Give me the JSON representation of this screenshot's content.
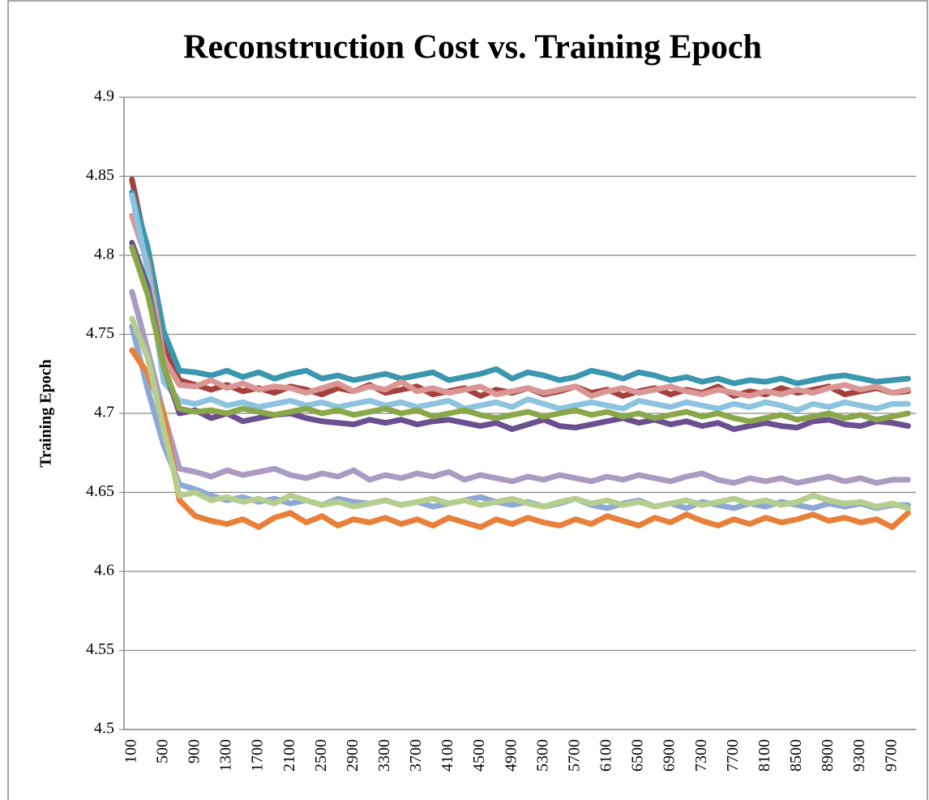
{
  "chart_data": {
    "type": "line",
    "title": "Reconstruction Cost vs. Training Epoch",
    "y_label": "Training Epoch",
    "categories": [
      "100",
      null,
      "500",
      null,
      "900",
      null,
      "1300",
      null,
      "1700",
      null,
      "2100",
      null,
      "2500",
      null,
      "2900",
      null,
      "3300",
      null,
      "3700",
      null,
      "4100",
      null,
      "4500",
      null,
      "4900",
      null,
      "5300",
      null,
      "5700",
      null,
      "6100",
      null,
      "6500",
      null,
      "6900",
      null,
      "7300",
      null,
      "7700",
      null,
      "8100",
      null,
      "8500",
      null,
      "8900",
      null,
      "9300",
      null,
      "9700",
      null
    ],
    "ylim": [
      4.5,
      4.9
    ],
    "yticks": [
      4.5,
      4.55,
      4.6,
      4.65,
      4.7,
      4.75,
      4.8,
      4.85,
      4.9
    ],
    "grid": true,
    "series": [
      {
        "color": "#a5403d",
        "values": [
          4.848,
          4.8,
          4.745,
          4.721,
          4.718,
          4.715,
          4.718,
          4.714,
          4.716,
          4.713,
          4.717,
          4.715,
          4.712,
          4.716,
          4.714,
          4.718,
          4.713,
          4.715,
          4.717,
          4.712,
          4.714,
          4.716,
          4.711,
          4.715,
          4.713,
          4.716,
          4.712,
          4.714,
          4.717,
          4.713,
          4.715,
          4.711,
          4.714,
          4.716,
          4.712,
          4.715,
          4.713,
          4.717,
          4.711,
          4.714,
          4.712,
          4.716,
          4.713,
          4.715,
          4.717,
          4.712,
          4.714,
          4.716,
          4.713,
          4.714
        ]
      },
      {
        "color": "#3a97ae",
        "values": [
          4.84,
          4.805,
          4.752,
          4.727,
          4.726,
          4.724,
          4.727,
          4.723,
          4.726,
          4.722,
          4.725,
          4.727,
          4.722,
          4.724,
          4.721,
          4.723,
          4.725,
          4.722,
          4.724,
          4.726,
          4.721,
          4.723,
          4.725,
          4.728,
          4.722,
          4.726,
          4.724,
          4.721,
          4.723,
          4.727,
          4.725,
          4.722,
          4.726,
          4.724,
          4.721,
          4.723,
          4.72,
          4.722,
          4.719,
          4.721,
          4.72,
          4.722,
          4.719,
          4.721,
          4.723,
          4.724,
          4.722,
          4.72,
          4.721,
          4.722
        ]
      },
      {
        "color": "#d99694",
        "values": [
          4.825,
          4.795,
          4.735,
          4.718,
          4.717,
          4.721,
          4.716,
          4.719,
          4.715,
          4.717,
          4.716,
          4.713,
          4.716,
          4.719,
          4.714,
          4.717,
          4.715,
          4.72,
          4.714,
          4.716,
          4.713,
          4.715,
          4.717,
          4.712,
          4.714,
          4.716,
          4.713,
          4.715,
          4.717,
          4.711,
          4.714,
          4.716,
          4.713,
          4.715,
          4.717,
          4.714,
          4.712,
          4.715,
          4.713,
          4.711,
          4.714,
          4.712,
          4.715,
          4.713,
          4.716,
          4.718,
          4.715,
          4.717,
          4.713,
          4.715
        ]
      },
      {
        "color": "#8cc3de",
        "values": [
          4.838,
          4.79,
          4.72,
          4.708,
          4.706,
          4.709,
          4.705,
          4.707,
          4.704,
          4.706,
          4.708,
          4.705,
          4.707,
          4.704,
          4.706,
          4.708,
          4.705,
          4.707,
          4.704,
          4.706,
          4.708,
          4.703,
          4.705,
          4.707,
          4.704,
          4.709,
          4.706,
          4.703,
          4.705,
          4.707,
          4.705,
          4.703,
          4.708,
          4.706,
          4.704,
          4.707,
          4.705,
          4.703,
          4.706,
          4.704,
          4.707,
          4.705,
          4.702,
          4.706,
          4.704,
          4.707,
          4.705,
          4.703,
          4.706,
          4.706
        ]
      },
      {
        "color": "#6b4f8f",
        "values": [
          4.808,
          4.78,
          4.73,
          4.7,
          4.702,
          4.697,
          4.7,
          4.695,
          4.697,
          4.699,
          4.7,
          4.697,
          4.695,
          4.694,
          4.693,
          4.696,
          4.694,
          4.696,
          4.693,
          4.695,
          4.696,
          4.694,
          4.692,
          4.694,
          4.69,
          4.693,
          4.696,
          4.692,
          4.691,
          4.693,
          4.695,
          4.697,
          4.694,
          4.696,
          4.693,
          4.695,
          4.692,
          4.694,
          4.69,
          4.692,
          4.694,
          4.692,
          4.691,
          4.695,
          4.696,
          4.693,
          4.692,
          4.695,
          4.694,
          4.692
        ]
      },
      {
        "color": "#8aa84a",
        "values": [
          4.805,
          4.775,
          4.73,
          4.703,
          4.701,
          4.702,
          4.7,
          4.703,
          4.701,
          4.699,
          4.701,
          4.703,
          4.7,
          4.702,
          4.699,
          4.701,
          4.703,
          4.7,
          4.702,
          4.698,
          4.7,
          4.702,
          4.699,
          4.697,
          4.699,
          4.701,
          4.698,
          4.7,
          4.702,
          4.699,
          4.701,
          4.698,
          4.7,
          4.697,
          4.699,
          4.701,
          4.698,
          4.7,
          4.697,
          4.695,
          4.697,
          4.699,
          4.696,
          4.698,
          4.7,
          4.697,
          4.699,
          4.696,
          4.698,
          4.7
        ]
      },
      {
        "color": "#a99bc1",
        "values": [
          4.777,
          4.74,
          4.7,
          4.665,
          4.663,
          4.66,
          4.664,
          4.661,
          4.663,
          4.665,
          4.661,
          4.659,
          4.662,
          4.66,
          4.664,
          4.658,
          4.661,
          4.659,
          4.662,
          4.66,
          4.663,
          4.658,
          4.661,
          4.659,
          4.657,
          4.66,
          4.658,
          4.661,
          4.659,
          4.657,
          4.66,
          4.658,
          4.661,
          4.659,
          4.657,
          4.66,
          4.662,
          4.658,
          4.656,
          4.659,
          4.657,
          4.659,
          4.656,
          4.658,
          4.66,
          4.657,
          4.659,
          4.656,
          4.658,
          4.658
        ]
      },
      {
        "color": "#8ea8d6",
        "values": [
          4.755,
          4.715,
          4.68,
          4.655,
          4.652,
          4.648,
          4.645,
          4.647,
          4.644,
          4.646,
          4.643,
          4.645,
          4.642,
          4.646,
          4.644,
          4.643,
          4.645,
          4.642,
          4.644,
          4.641,
          4.643,
          4.645,
          4.647,
          4.644,
          4.642,
          4.644,
          4.641,
          4.643,
          4.646,
          4.642,
          4.64,
          4.643,
          4.645,
          4.641,
          4.643,
          4.64,
          4.644,
          4.642,
          4.64,
          4.643,
          4.641,
          4.644,
          4.642,
          4.64,
          4.643,
          4.641,
          4.643,
          4.64,
          4.642,
          4.642
        ]
      },
      {
        "color": "#e8803a",
        "values": [
          4.74,
          4.725,
          4.7,
          4.645,
          4.635,
          4.632,
          4.63,
          4.633,
          4.628,
          4.634,
          4.637,
          4.631,
          4.635,
          4.629,
          4.633,
          4.631,
          4.634,
          4.63,
          4.633,
          4.629,
          4.634,
          4.631,
          4.628,
          4.633,
          4.63,
          4.634,
          4.631,
          4.629,
          4.633,
          4.63,
          4.635,
          4.632,
          4.629,
          4.634,
          4.631,
          4.636,
          4.632,
          4.629,
          4.633,
          4.63,
          4.634,
          4.631,
          4.633,
          4.636,
          4.632,
          4.634,
          4.631,
          4.633,
          4.628,
          4.637
        ]
      },
      {
        "color": "#b5ce8d",
        "values": [
          4.76,
          4.735,
          4.69,
          4.648,
          4.65,
          4.645,
          4.647,
          4.644,
          4.646,
          4.643,
          4.648,
          4.645,
          4.642,
          4.644,
          4.641,
          4.643,
          4.645,
          4.642,
          4.644,
          4.646,
          4.643,
          4.645,
          4.642,
          4.644,
          4.646,
          4.643,
          4.641,
          4.644,
          4.646,
          4.643,
          4.645,
          4.642,
          4.644,
          4.641,
          4.643,
          4.645,
          4.642,
          4.644,
          4.646,
          4.643,
          4.645,
          4.642,
          4.644,
          4.648,
          4.645,
          4.643,
          4.644,
          4.641,
          4.643,
          4.64
        ]
      }
    ]
  }
}
